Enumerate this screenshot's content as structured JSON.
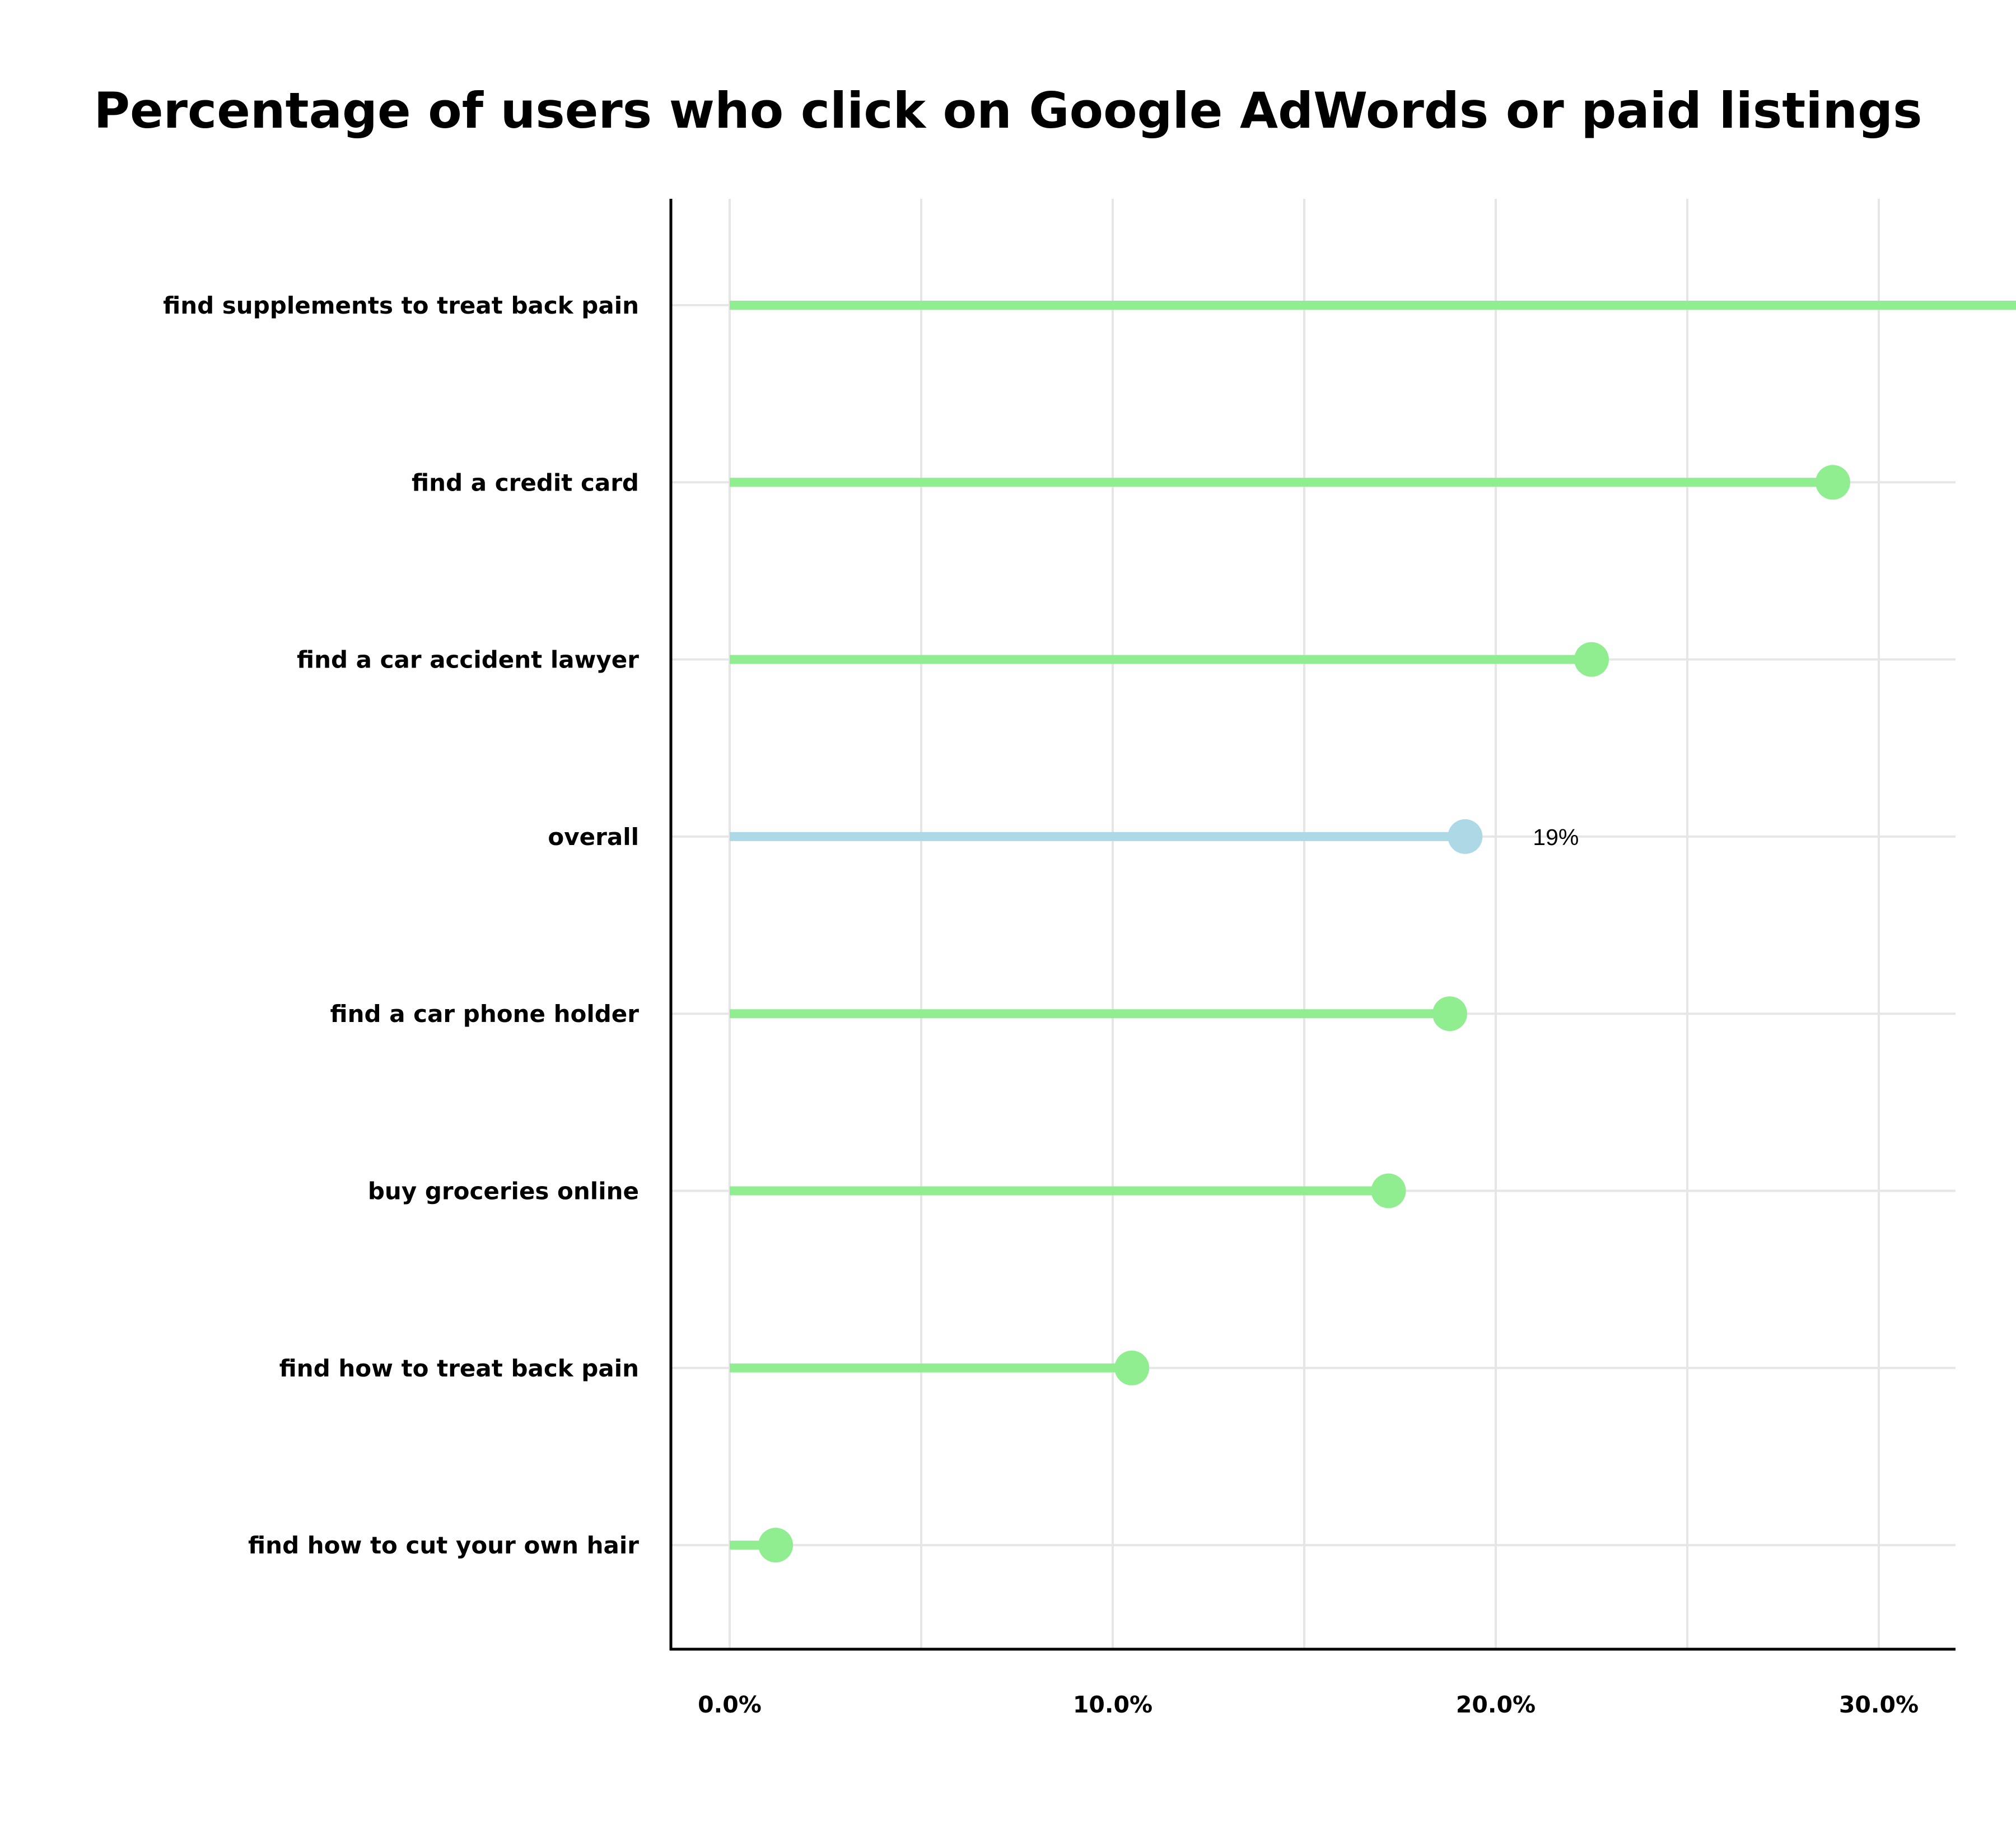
{
  "chart_data": {
    "type": "lollipop",
    "title": "Percentage of users who click on Google AdWords or paid listings",
    "xlabel": "",
    "ylabel": "",
    "xlim": [
      -1.8,
      37.5
    ],
    "xticks": [
      0,
      10,
      20,
      30
    ],
    "xtick_labels": [
      "0.0%",
      "10.0%",
      "20.0%",
      "30.0%"
    ],
    "minor_gridlines": [
      5,
      15,
      25,
      35
    ],
    "grid": true,
    "categories": [
      "find supplements to treat back pain",
      "find a credit card",
      "find a car accident lawyer",
      "overall",
      "find a car phone holder",
      "buy groceries online",
      "find how to treat back pain",
      "find how to cut your own hair"
    ],
    "values": [
      35.4,
      28.8,
      22.5,
      19.2,
      18.8,
      17.2,
      10.5,
      1.2
    ],
    "highlight_category": "overall",
    "highlight_label": "19%",
    "colors": {
      "default": "#90ee90",
      "highlight": "#add8e6",
      "grid": "#e6e6e6",
      "axis": "#000000"
    }
  }
}
